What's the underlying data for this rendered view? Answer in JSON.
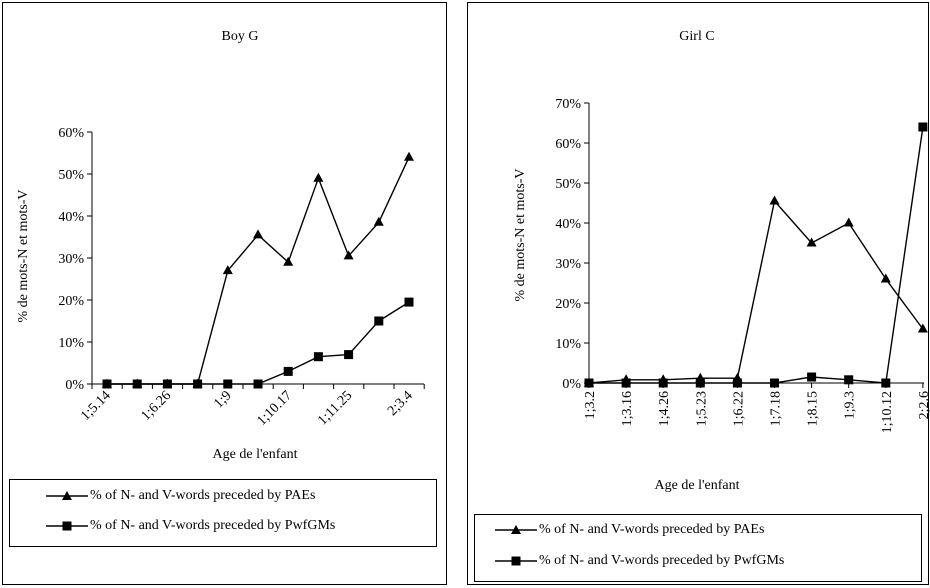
{
  "chart_data": [
    {
      "type": "line",
      "title": "Boy G",
      "xlabel": "Age de l'enfant",
      "ylabel": "% de mots-N et mots-V",
      "categories": [
        "1;5.14",
        "",
        "1;6.26",
        "",
        "1;9",
        "",
        "1;10.17",
        "",
        "1;11.25",
        "",
        "2;3.4"
      ],
      "ylim": [
        0,
        60
      ],
      "yticks": [
        "0%",
        "10%",
        "20%",
        "30%",
        "40%",
        "50%",
        "60%"
      ],
      "series": [
        {
          "name": "% of N- and V-words preceded by PAEs",
          "marker": "triangle",
          "values": [
            0,
            0,
            0,
            0,
            27,
            35.5,
            29,
            49,
            30.5,
            38.5,
            54
          ]
        },
        {
          "name": "% of N- and V-words preceded by PwfGMs",
          "marker": "square",
          "values": [
            0,
            0,
            0,
            0,
            0,
            0,
            3,
            6.5,
            7,
            15,
            19.5
          ]
        }
      ],
      "grid": false,
      "legend_position": "bottom"
    },
    {
      "type": "line",
      "title": "Girl C",
      "xlabel": "Age de l'enfant",
      "ylabel": "% de mots-N et mots-V",
      "categories": [
        "1;3.2",
        "1;3.16",
        "1;4.26",
        "1;5.23",
        "1;6.22",
        "1;7.18",
        "1;8.15",
        "1;9.3",
        "1;10.12",
        "2;2.6"
      ],
      "ylim": [
        0,
        70
      ],
      "yticks": [
        "0%",
        "10%",
        "20%",
        "30%",
        "40%",
        "50%",
        "60%",
        "70%"
      ],
      "series": [
        {
          "name": "% of N- and V-words preceded by PAEs",
          "marker": "triangle",
          "values": [
            0,
            0.8,
            0.8,
            1.2,
            1.2,
            45.5,
            35,
            40,
            26,
            13.5
          ]
        },
        {
          "name": "% of N- and V-words preceded by PwfGMs",
          "marker": "square",
          "values": [
            0,
            0,
            0,
            0,
            0,
            0,
            1.5,
            0.8,
            0,
            64
          ]
        }
      ],
      "grid": false,
      "legend_position": "bottom"
    }
  ]
}
